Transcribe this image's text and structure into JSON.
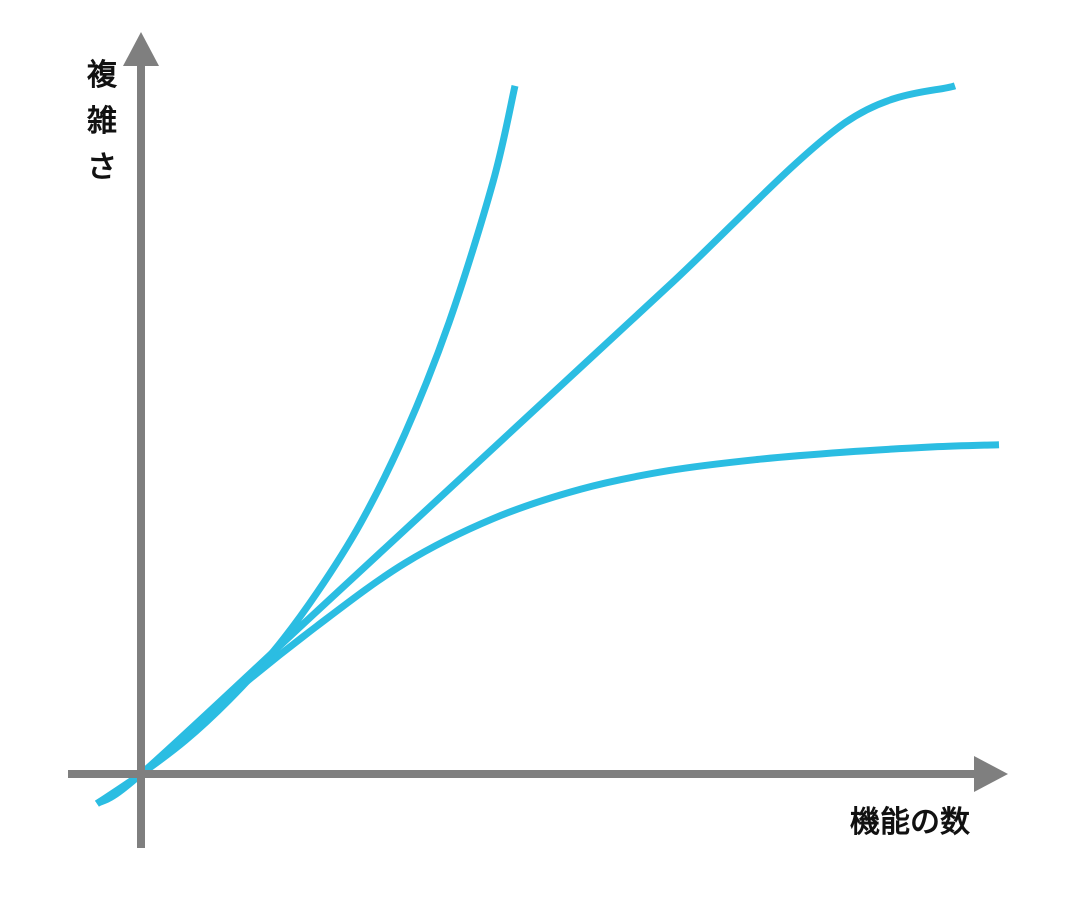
{
  "chart_data": {
    "type": "line",
    "xlabel": "機能の数",
    "ylabel": "複雑さ",
    "xlim": [
      -1,
      19
    ],
    "ylim": [
      -0.4,
      9.8
    ],
    "grid": false,
    "legend": "none",
    "line_color": "#2bbde2",
    "axis_color": "#7f7f7f",
    "series": [
      {
        "shape": "exponential",
        "x": [
          -1.0,
          0,
          1,
          2,
          3,
          4,
          5,
          6,
          7,
          8,
          8.5
        ],
        "y": [
          -0.4,
          0.0,
          0.45,
          1.0,
          1.65,
          2.45,
          3.4,
          4.6,
          6.1,
          8.0,
          9.3
        ]
      },
      {
        "shape": "linear",
        "x": [
          -1.0,
          0,
          4,
          8,
          12,
          16,
          18.5
        ],
        "y": [
          -0.4,
          0.0,
          2.2,
          4.4,
          6.6,
          8.8,
          9.3
        ]
      },
      {
        "shape": "saturating",
        "x": [
          -1.0,
          0,
          2,
          4,
          6,
          8,
          10,
          12,
          14,
          16,
          18,
          19.5
        ],
        "y": [
          -0.4,
          0.0,
          1.05,
          2.0,
          2.85,
          3.45,
          3.85,
          4.1,
          4.25,
          4.35,
          4.42,
          4.45
        ]
      }
    ]
  }
}
